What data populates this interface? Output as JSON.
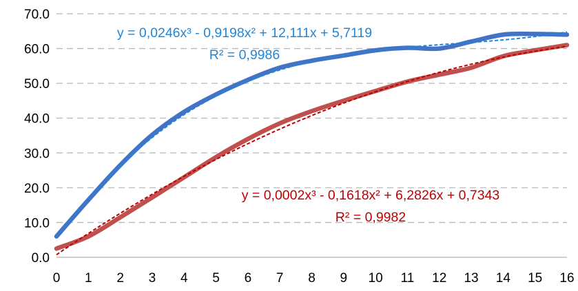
{
  "chart_data": {
    "type": "line",
    "title": "",
    "xlabel": "",
    "ylabel": "",
    "xlim": [
      0,
      16
    ],
    "ylim": [
      0,
      70
    ],
    "x_ticks": [
      "0",
      "1",
      "2",
      "3",
      "4",
      "5",
      "6",
      "7",
      "8",
      "9",
      "10",
      "11",
      "12",
      "13",
      "14",
      "15",
      "16"
    ],
    "y_ticks": [
      "0.0",
      "10.0",
      "20.0",
      "30.0",
      "40.0",
      "50.0",
      "60.0",
      "70.0"
    ],
    "grid": "horizontal-dashed",
    "legend": "none",
    "x": [
      0,
      1,
      2,
      3,
      4,
      5,
      6,
      7,
      8,
      9,
      10,
      11,
      12,
      13,
      14,
      15,
      16
    ],
    "series": [
      {
        "color": "#4472c4",
        "values": [
          6.0,
          16.5,
          26.5,
          35.2,
          41.8,
          46.8,
          51.0,
          54.5,
          56.5,
          58.0,
          59.5,
          60.2,
          60.0,
          62.0,
          64.0,
          64.2,
          64.0
        ],
        "trendline": {
          "color": "#1f86d8",
          "coefficients": [
            0.0246,
            -0.9198,
            12.111,
            5.7119
          ],
          "equation": "y = 0,0246x³ - 0,9198x² + 12,111x + 5,7119",
          "r2": "R² = 0,9986"
        }
      },
      {
        "color": "#c0504d",
        "values": [
          2.5,
          6.0,
          11.5,
          17.2,
          23.0,
          28.8,
          34.0,
          38.5,
          42.0,
          45.0,
          47.8,
          50.5,
          52.5,
          54.5,
          57.8,
          59.5,
          61.0
        ],
        "trendline": {
          "color": "#c00000",
          "coefficients": [
            0.0002,
            -0.1618,
            6.2826,
            0.7343
          ],
          "equation": "y = 0,0002x³ - 0,1618x² + 6,2826x + 0,7343",
          "r2": "R² = 0,9982"
        }
      }
    ]
  }
}
